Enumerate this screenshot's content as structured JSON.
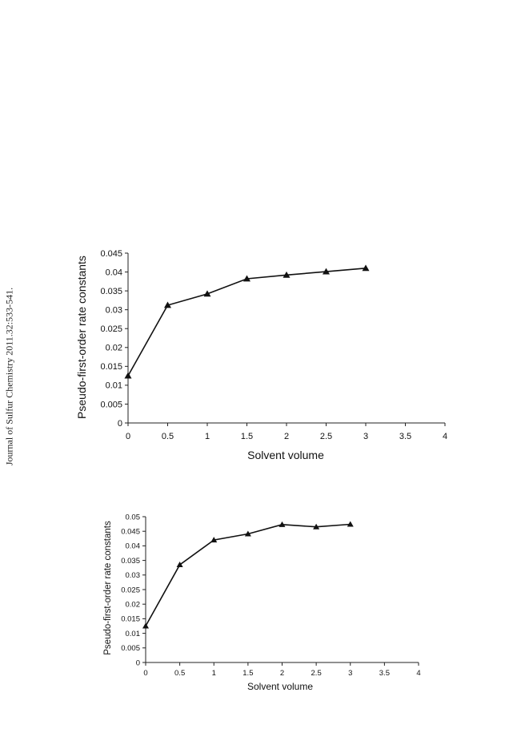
{
  "side_citation": "Journal of Sulfur Chemistry 2011.32:533-541.",
  "colors": {
    "line": "#111111",
    "axis": "#222222",
    "text": "#111111"
  },
  "chart_data": [
    {
      "type": "line",
      "xlabel": "Solvent volume",
      "ylabel": "Pseudo-first-order rate constants",
      "xlim": [
        0,
        4
      ],
      "ylim": [
        0,
        0.045
      ],
      "x_ticks": [
        "0",
        "0.5",
        "1",
        "1.5",
        "2",
        "2.5",
        "3",
        "3.5",
        "4"
      ],
      "y_ticks": [
        "0",
        "0.005",
        "0.01",
        "0.015",
        "0.02",
        "0.025",
        "0.03",
        "0.035",
        "0.04",
        "0.045"
      ],
      "grid": false,
      "marker": "triangle",
      "series": [
        {
          "x": [
            0,
            0.5,
            1,
            1.5,
            2,
            2.5,
            3
          ],
          "y": [
            0.0125,
            0.0312,
            0.0342,
            0.0382,
            0.0392,
            0.0401,
            0.041
          ]
        }
      ]
    },
    {
      "type": "line",
      "xlabel": "Solvent volume",
      "ylabel": "Pseudo-first-order rate constants",
      "xlim": [
        0,
        4
      ],
      "ylim": [
        0,
        0.05
      ],
      "x_ticks": [
        "0",
        "0.5",
        "1",
        "1.5",
        "2",
        "2.5",
        "3",
        "3.5",
        "4"
      ],
      "y_ticks": [
        "0",
        "0.005",
        "0.01",
        "0.015",
        "0.02",
        "0.025",
        "0.03",
        "0.035",
        "0.04",
        "0.045",
        "0.05"
      ],
      "grid": false,
      "marker": "triangle",
      "series": [
        {
          "x": [
            0,
            0.5,
            1,
            1.5,
            2,
            2.5,
            3
          ],
          "y": [
            0.0125,
            0.0335,
            0.042,
            0.0441,
            0.0473,
            0.0465,
            0.0474
          ]
        }
      ]
    }
  ]
}
